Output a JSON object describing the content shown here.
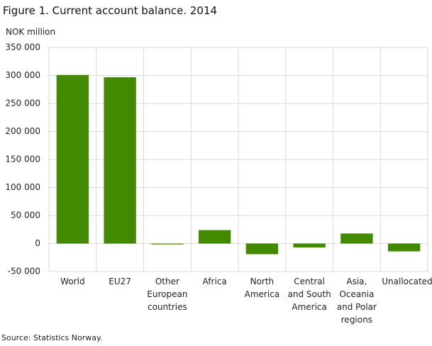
{
  "chart_data": {
    "type": "bar",
    "title": "Figure 1. Current account balance. 2014",
    "y_label": "NOK million",
    "source": "Source: Statistics Norway.",
    "categories": [
      "World",
      "EU27",
      "Other European countries",
      "Africa",
      "North America",
      "Central and South America",
      "Asia, Oceania and Polar regions",
      "Unallocated"
    ],
    "values": [
      301000,
      297000,
      -1500,
      24000,
      -19000,
      -7000,
      18000,
      -14000
    ],
    "color": "#448a00",
    "ylim": [
      -50000,
      350000
    ],
    "yticks": [
      {
        "value": -50000,
        "label": "-50 000"
      },
      0,
      {
        "value": 50000,
        "label": "50 000"
      },
      {
        "value": 100000,
        "label": "100 000"
      },
      {
        "value": 150000,
        "label": "150 000"
      },
      {
        "value": 200000,
        "label": "200 000"
      },
      {
        "value": 250000,
        "label": "250 000"
      },
      {
        "value": 300000,
        "label": "300 000"
      },
      {
        "value": 350000,
        "label": "350 000"
      }
    ],
    "grid": true
  }
}
